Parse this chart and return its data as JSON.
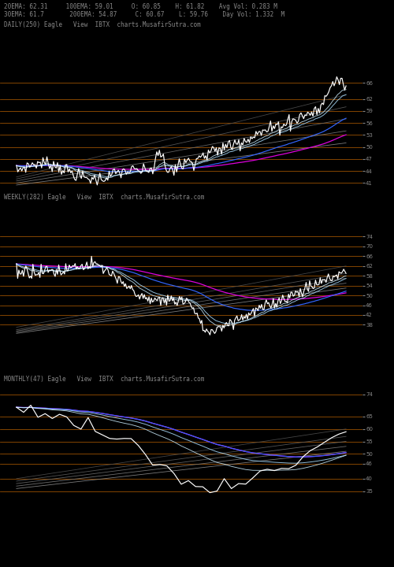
{
  "title_line1": "20EMA: 62.31     100EMA: 59.01     O: 60.85    H: 61.82    Avg Vol: 0.283 M",
  "title_line2": "30EMA: 61.7       200EMA: 54.87     C: 60.67    L: 59.76    Day Vol: 1.332  M",
  "subtitle_daily": "DAILY(250) Eagle   View  IBTX  charts.MusafirSutra.com",
  "subtitle_weekly": "WEEKLY(282) Eagle   View  IBTX  charts.MusafirSutra.com",
  "subtitle_monthly": "MONTHLY(47) Eagle   View  IBTX  charts.MusafirSutra.com",
  "bg_color": "#000000",
  "text_color": "#888888",
  "orange_color": "#b86000",
  "white_color": "#ffffff",
  "blue_color": "#3366ff",
  "magenta_color": "#dd00dd",
  "grey_colors": [
    "#555555",
    "#666666",
    "#777777",
    "#888888",
    "#999999"
  ],
  "daily_ylevels": [
    66,
    62,
    59,
    56,
    53,
    50,
    47,
    44,
    41
  ],
  "weekly_ylevels": [
    74,
    70,
    66,
    62,
    58,
    54,
    50,
    46,
    42,
    38
  ],
  "monthly_ylevels": [
    74,
    65,
    60,
    55,
    50,
    46,
    40,
    35
  ],
  "daily_ylim": [
    39.5,
    68
  ],
  "weekly_ylim": [
    33,
    78
  ],
  "monthly_ylim": [
    32,
    78
  ]
}
